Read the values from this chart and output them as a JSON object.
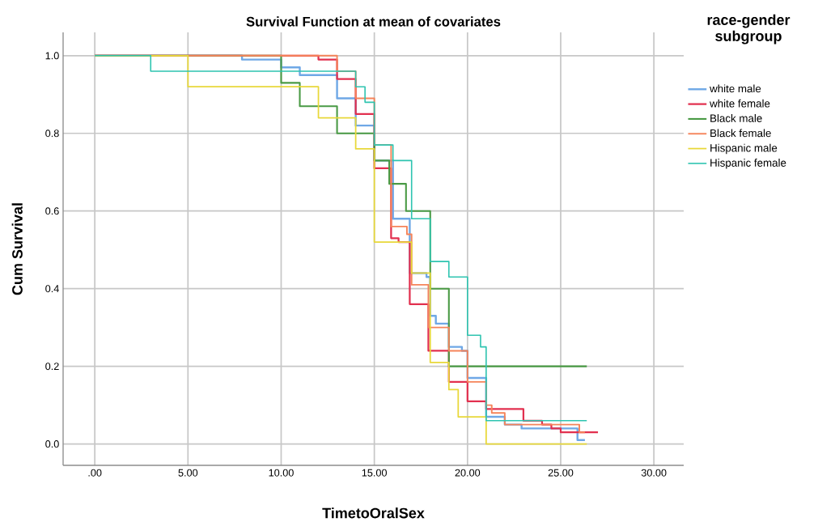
{
  "chart_data": {
    "type": "step",
    "title": "Survival Function at mean of covariates",
    "xlabel": "TimetoOralSex",
    "ylabel": "Cum Survival",
    "legend_title": "race-gender subgroup",
    "xlim": [
      -1.7,
      31.6
    ],
    "ylim": [
      -0.055,
      1.06
    ],
    "xticks": [
      {
        "value": 0,
        "label": ".00"
      },
      {
        "value": 5,
        "label": "5.00"
      },
      {
        "value": 10,
        "label": "10.00"
      },
      {
        "value": 15,
        "label": "15.00"
      },
      {
        "value": 20,
        "label": "20.00"
      },
      {
        "value": 25,
        "label": "25.00"
      },
      {
        "value": 30,
        "label": "30.00"
      }
    ],
    "yticks": [
      {
        "value": 0,
        "label": "0.0"
      },
      {
        "value": 0.2,
        "label": "0.2"
      },
      {
        "value": 0.4,
        "label": "0.4"
      },
      {
        "value": 0.6,
        "label": "0.6"
      },
      {
        "value": 0.8,
        "label": "0.8"
      },
      {
        "value": 1,
        "label": "1.0"
      }
    ],
    "grid": true,
    "legend": "right",
    "series": [
      {
        "name": "white male",
        "color": "#6fa8e6",
        "x": [
          0,
          7.9,
          10,
          11,
          13,
          14,
          15,
          16,
          16.9,
          17.8,
          18,
          18.3,
          19,
          19.7,
          20,
          21,
          22,
          22.9,
          25.9,
          26.3
        ],
        "values": [
          1,
          0.99,
          0.97,
          0.95,
          0.89,
          0.82,
          0.73,
          0.58,
          0.44,
          0.43,
          0.33,
          0.31,
          0.25,
          0.24,
          0.17,
          0.07,
          0.05,
          0.04,
          0.01,
          0.01
        ]
      },
      {
        "name": "white female",
        "color": "#e2304f",
        "x": [
          0,
          12,
          13,
          14,
          15,
          15.9,
          16.3,
          16.9,
          17.9,
          19,
          20,
          21,
          23,
          24,
          24.5,
          25,
          27
        ],
        "values": [
          1,
          0.99,
          0.94,
          0.85,
          0.71,
          0.53,
          0.52,
          0.36,
          0.24,
          0.16,
          0.11,
          0.09,
          0.06,
          0.05,
          0.04,
          0.03,
          0.03
        ]
      },
      {
        "name": "Black male",
        "color": "#4a9a45",
        "x": [
          0,
          10,
          11,
          13,
          15,
          15.8,
          16.7,
          18,
          19,
          26.4
        ],
        "values": [
          1,
          0.93,
          0.87,
          0.8,
          0.73,
          0.67,
          0.6,
          0.4,
          0.2,
          0.2
        ]
      },
      {
        "name": "Black female",
        "color": "#f5845a",
        "x": [
          0,
          13,
          14,
          15,
          15.9,
          16.75,
          17,
          17.9,
          19,
          20,
          21,
          21.3,
          22,
          26,
          26.3
        ],
        "values": [
          1,
          0.96,
          0.89,
          0.77,
          0.56,
          0.54,
          0.41,
          0.3,
          0.24,
          0.16,
          0.1,
          0.08,
          0.05,
          0.03,
          0.03
        ]
      },
      {
        "name": "Hispanic male",
        "color": "#e8d83a",
        "x": [
          0,
          5,
          12,
          14,
          15,
          17,
          18,
          19,
          19.5,
          21,
          26.4
        ],
        "values": [
          1,
          0.92,
          0.84,
          0.76,
          0.52,
          0.44,
          0.21,
          0.14,
          0.07,
          0,
          0
        ]
      },
      {
        "name": "Hispanic female",
        "color": "#2ec4b0",
        "x": [
          0,
          3,
          14,
          14.5,
          15,
          16,
          17,
          18,
          19,
          20,
          20.7,
          21,
          26.4
        ],
        "values": [
          1,
          0.96,
          0.92,
          0.88,
          0.77,
          0.73,
          0.58,
          0.47,
          0.43,
          0.28,
          0.25,
          0.06,
          0.06
        ]
      }
    ]
  }
}
